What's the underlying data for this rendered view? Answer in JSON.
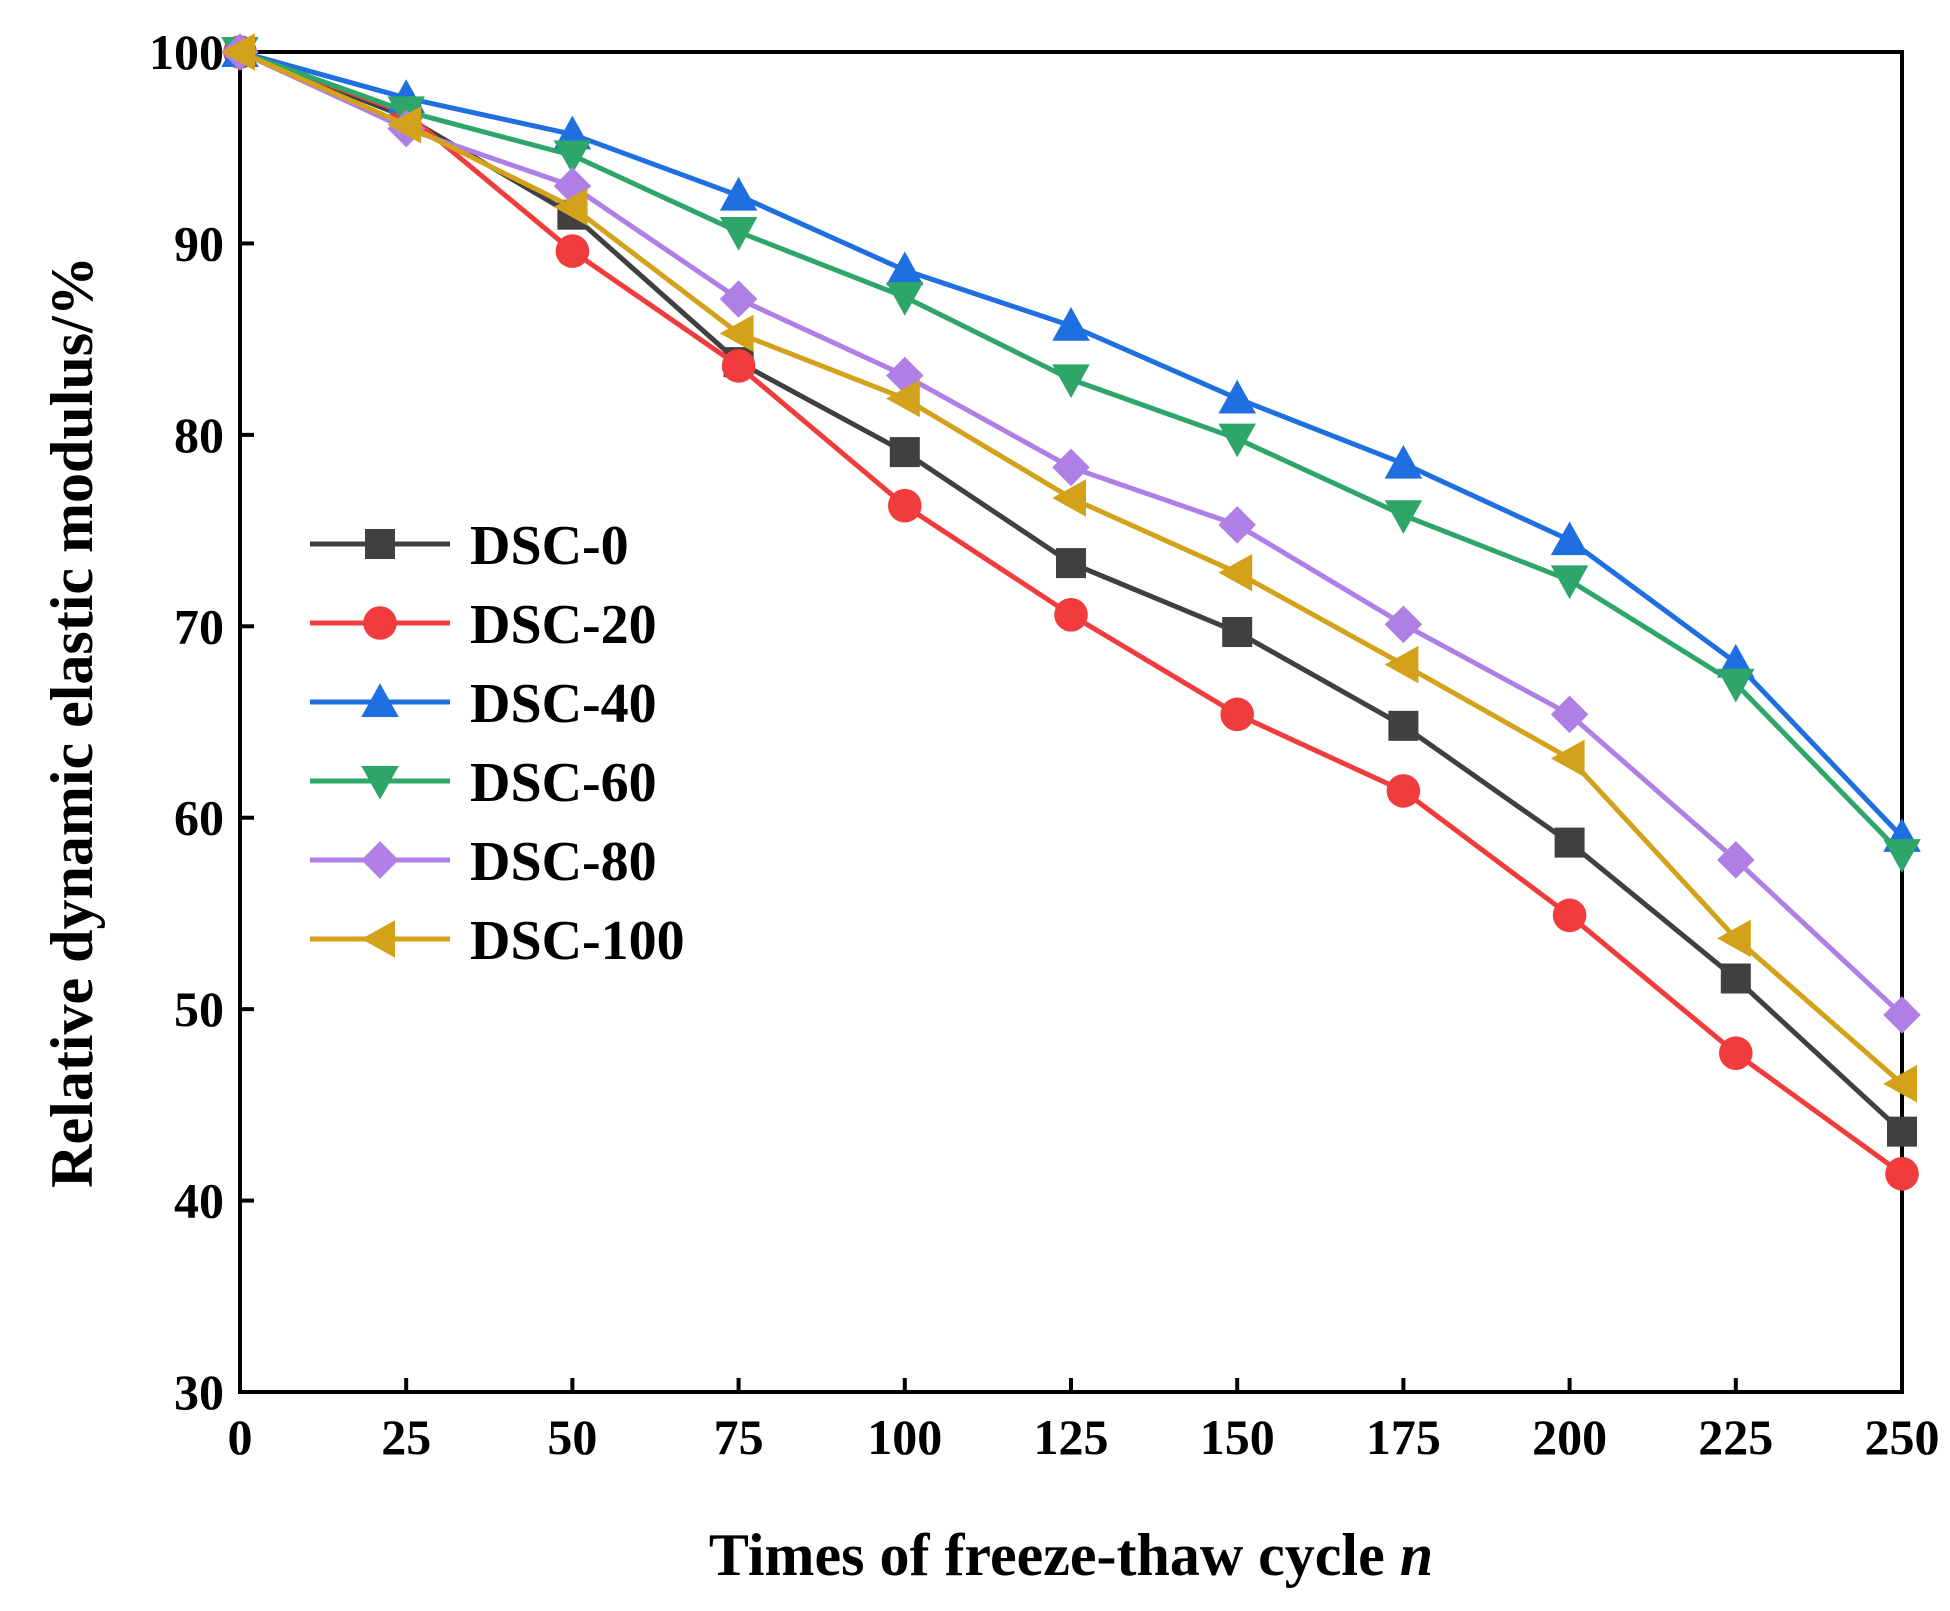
{
  "chart_data": {
    "type": "line",
    "title": "",
    "xlabel": "Times of freeze-thaw cycle ",
    "xlabel_var": "n",
    "ylabel": "Relative dynamic elastic modulus/%",
    "x": [
      0,
      25,
      50,
      75,
      100,
      125,
      150,
      175,
      200,
      225,
      250
    ],
    "xlim": [
      0,
      250
    ],
    "ylim": [
      30,
      100
    ],
    "xticks": [
      0,
      25,
      50,
      75,
      100,
      125,
      150,
      175,
      200,
      225,
      250
    ],
    "yticks": [
      30,
      40,
      50,
      60,
      70,
      80,
      90,
      100
    ],
    "grid": false,
    "legend_position": "center-left",
    "series": [
      {
        "name": "DSC-0",
        "marker": "square",
        "color": "#404040",
        "values": [
          100,
          96.6,
          91.5,
          83.8,
          79.1,
          73.3,
          69.7,
          64.8,
          58.7,
          51.6,
          43.6
        ]
      },
      {
        "name": "DSC-20",
        "marker": "circle",
        "color": "#f03c3c",
        "values": [
          100,
          96.8,
          89.6,
          83.6,
          76.3,
          70.6,
          65.4,
          61.4,
          54.9,
          47.7,
          41.4
        ]
      },
      {
        "name": "DSC-40",
        "marker": "triangle-up",
        "color": "#1f6fe0",
        "values": [
          100,
          97.6,
          95.7,
          92.5,
          88.6,
          85.7,
          81.9,
          78.5,
          74.5,
          68.1,
          59.0
        ]
      },
      {
        "name": "DSC-60",
        "marker": "triangle-down",
        "color": "#2ea66a",
        "values": [
          100,
          96.9,
          94.6,
          90.6,
          87.2,
          82.9,
          79.8,
          75.8,
          72.4,
          67.0,
          58.1
        ]
      },
      {
        "name": "DSC-80",
        "marker": "diamond",
        "color": "#b07fe6",
        "values": [
          100,
          96.0,
          93.0,
          87.1,
          83.1,
          78.3,
          75.3,
          70.1,
          65.4,
          57.8,
          49.7
        ]
      },
      {
        "name": "DSC-100",
        "marker": "triangle-left",
        "color": "#d4a21a",
        "values": [
          100,
          96.2,
          91.9,
          85.3,
          81.9,
          76.7,
          72.8,
          68.0,
          63.1,
          53.7,
          46.1
        ]
      }
    ]
  }
}
